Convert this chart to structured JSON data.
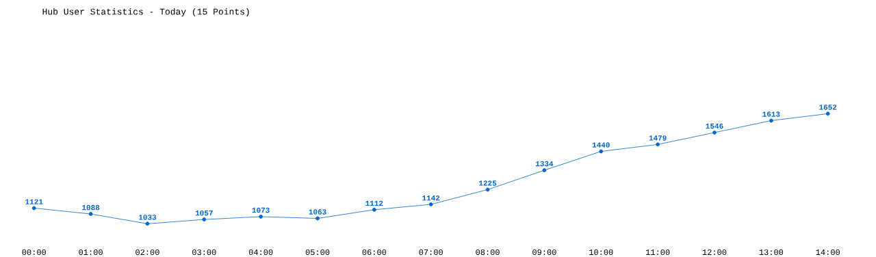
{
  "chart_data": {
    "type": "line",
    "title": "Hub User Statistics - Today (15 Points)",
    "categories": [
      "00:00",
      "01:00",
      "02:00",
      "03:00",
      "04:00",
      "05:00",
      "06:00",
      "07:00",
      "08:00",
      "09:00",
      "10:00",
      "11:00",
      "12:00",
      "13:00",
      "14:00"
    ],
    "values": [
      1121,
      1088,
      1033,
      1057,
      1073,
      1063,
      1112,
      1142,
      1225,
      1334,
      1440,
      1479,
      1546,
      1613,
      1652
    ],
    "color": "#0066cc",
    "marker": "circle",
    "data_labels": true
  }
}
